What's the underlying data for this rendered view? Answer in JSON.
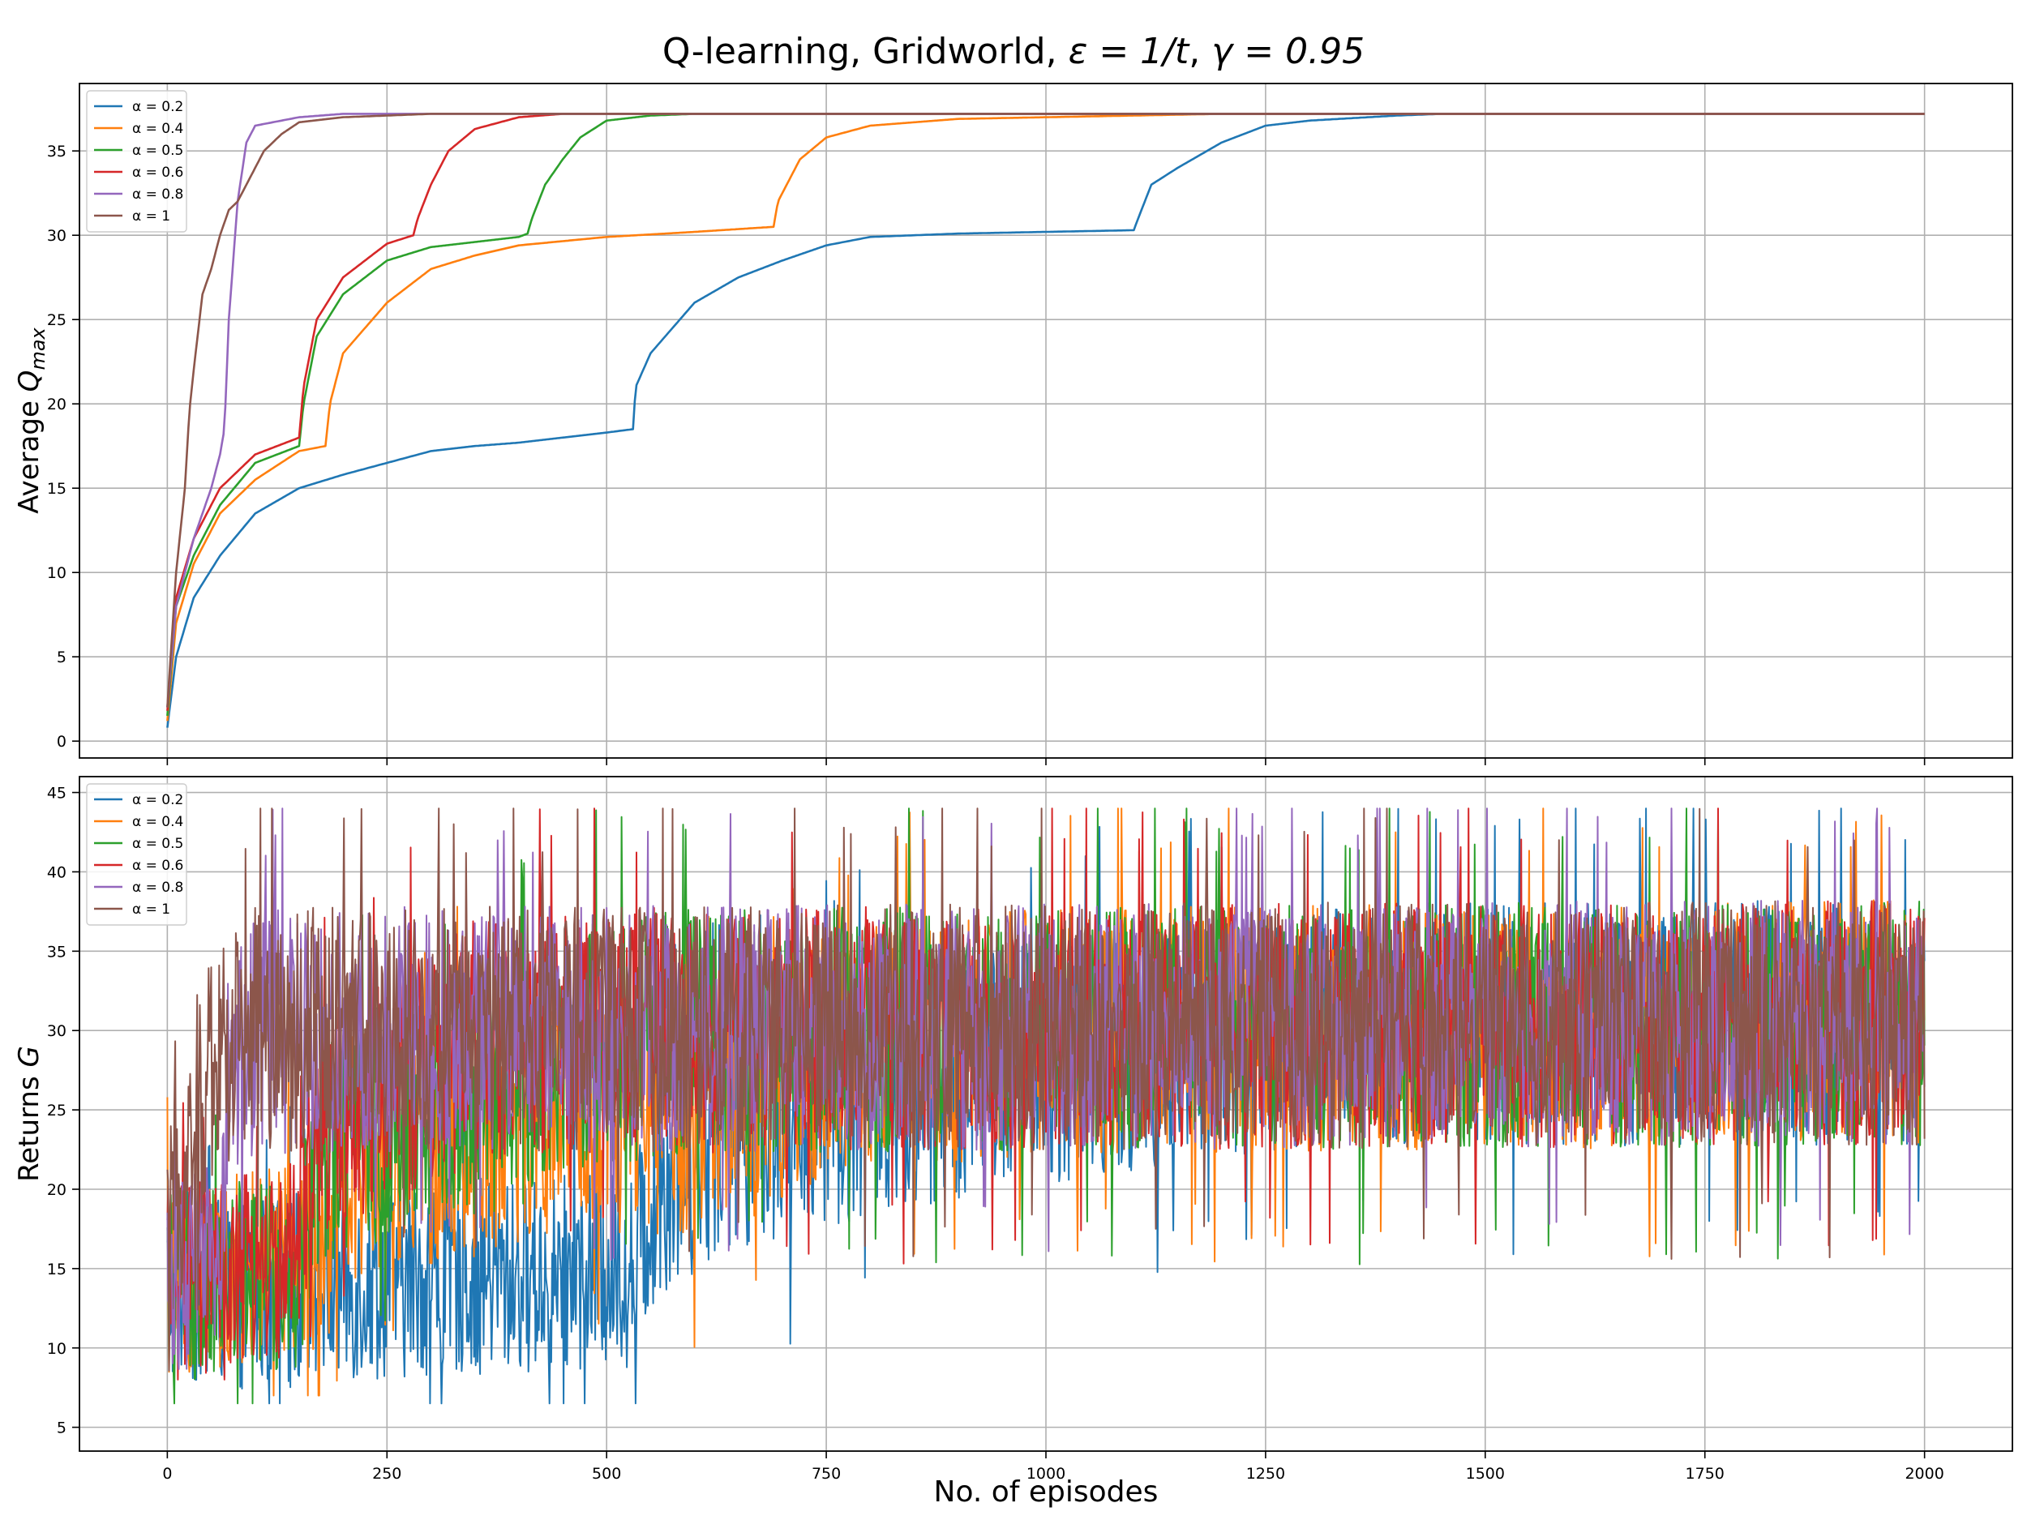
{
  "figure": {
    "title_main": "Q-learning, Gridworld, ",
    "title_eps": "ε = 1/t",
    "title_sep": ", ",
    "title_gamma": "γ = 0.95",
    "xlabel": "No. of episodes"
  },
  "chart_data": [
    {
      "type": "line",
      "panel": "top",
      "ylabel_main": "Average Q",
      "ylabel_sub": "max",
      "xlim": [
        -100,
        2100
      ],
      "ylim": [
        -1,
        39
      ],
      "grid": true,
      "legend_position": "upper-left",
      "xticks": [
        0,
        250,
        500,
        750,
        1000,
        1250,
        1500,
        1750,
        2000
      ],
      "xticks_labeled": false,
      "yticks": [
        0,
        5,
        10,
        15,
        20,
        25,
        30,
        35
      ],
      "series": [
        {
          "name": "α = 0.2",
          "color": "#1f77b4",
          "points": [
            [
              0,
              0.8
            ],
            [
              10,
              5
            ],
            [
              30,
              8.5
            ],
            [
              60,
              11
            ],
            [
              100,
              13.5
            ],
            [
              150,
              15
            ],
            [
              200,
              15.8
            ],
            [
              250,
              16.5
            ],
            [
              300,
              17.2
            ],
            [
              350,
              17.5
            ],
            [
              400,
              17.7
            ],
            [
              450,
              18
            ],
            [
              500,
              18.3
            ],
            [
              530,
              18.5
            ],
            [
              533,
              21
            ],
            [
              550,
              23
            ],
            [
              600,
              26
            ],
            [
              650,
              27.5
            ],
            [
              700,
              28.5
            ],
            [
              750,
              29.4
            ],
            [
              800,
              29.9
            ],
            [
              900,
              30.1
            ],
            [
              1000,
              30.2
            ],
            [
              1100,
              30.3
            ],
            [
              1105,
              31
            ],
            [
              1120,
              33
            ],
            [
              1150,
              34
            ],
            [
              1200,
              35.5
            ],
            [
              1250,
              36.5
            ],
            [
              1300,
              36.8
            ],
            [
              1400,
              37.1
            ],
            [
              1450,
              37.2
            ],
            [
              2000,
              37.2
            ]
          ]
        },
        {
          "name": "α = 0.4",
          "color": "#ff7f0e",
          "points": [
            [
              0,
              1.2
            ],
            [
              10,
              7
            ],
            [
              30,
              10.5
            ],
            [
              60,
              13.5
            ],
            [
              100,
              15.5
            ],
            [
              150,
              17.2
            ],
            [
              180,
              17.5
            ],
            [
              185,
              20
            ],
            [
              200,
              23
            ],
            [
              250,
              26
            ],
            [
              300,
              28
            ],
            [
              350,
              28.8
            ],
            [
              400,
              29.4
            ],
            [
              500,
              29.9
            ],
            [
              600,
              30.2
            ],
            [
              690,
              30.5
            ],
            [
              695,
              32
            ],
            [
              720,
              34.5
            ],
            [
              750,
              35.8
            ],
            [
              800,
              36.5
            ],
            [
              900,
              36.9
            ],
            [
              1000,
              37
            ],
            [
              1100,
              37.1
            ],
            [
              1200,
              37.2
            ],
            [
              2000,
              37.2
            ]
          ]
        },
        {
          "name": "α = 0.5",
          "color": "#2ca02c",
          "points": [
            [
              0,
              1.5
            ],
            [
              10,
              8
            ],
            [
              30,
              11
            ],
            [
              60,
              14
            ],
            [
              100,
              16.5
            ],
            [
              150,
              17.5
            ],
            [
              155,
              20
            ],
            [
              170,
              24
            ],
            [
              200,
              26.5
            ],
            [
              250,
              28.5
            ],
            [
              300,
              29.3
            ],
            [
              350,
              29.6
            ],
            [
              400,
              29.9
            ],
            [
              410,
              30.1
            ],
            [
              415,
              31
            ],
            [
              430,
              33
            ],
            [
              450,
              34.5
            ],
            [
              470,
              35.8
            ],
            [
              500,
              36.8
            ],
            [
              550,
              37.1
            ],
            [
              600,
              37.2
            ],
            [
              2000,
              37.2
            ]
          ]
        },
        {
          "name": "α = 0.6",
          "color": "#d62728",
          "points": [
            [
              0,
              1.8
            ],
            [
              10,
              8.5
            ],
            [
              30,
              12
            ],
            [
              60,
              15
            ],
            [
              100,
              17
            ],
            [
              150,
              18
            ],
            [
              155,
              21
            ],
            [
              170,
              25
            ],
            [
              200,
              27.5
            ],
            [
              250,
              29.5
            ],
            [
              280,
              30
            ],
            [
              285,
              31
            ],
            [
              300,
              33
            ],
            [
              320,
              35
            ],
            [
              350,
              36.3
            ],
            [
              400,
              37
            ],
            [
              450,
              37.2
            ],
            [
              2000,
              37.2
            ]
          ]
        },
        {
          "name": "α = 0.8",
          "color": "#9467bd",
          "points": [
            [
              0,
              2
            ],
            [
              10,
              8
            ],
            [
              30,
              12
            ],
            [
              50,
              15
            ],
            [
              60,
              17
            ],
            [
              65,
              18.5
            ],
            [
              70,
              25
            ],
            [
              80,
              32
            ],
            [
              90,
              35.5
            ],
            [
              100,
              36.5
            ],
            [
              150,
              37
            ],
            [
              200,
              37.2
            ],
            [
              2000,
              37.2
            ]
          ]
        },
        {
          "name": "α = 1",
          "color": "#8c564b",
          "points": [
            [
              0,
              2
            ],
            [
              10,
              10
            ],
            [
              20,
              15
            ],
            [
              25,
              19.5
            ],
            [
              30,
              22
            ],
            [
              40,
              26.5
            ],
            [
              50,
              28
            ],
            [
              60,
              30
            ],
            [
              70,
              31.5
            ],
            [
              80,
              32
            ],
            [
              90,
              33
            ],
            [
              100,
              34
            ],
            [
              110,
              35
            ],
            [
              130,
              36
            ],
            [
              150,
              36.7
            ],
            [
              200,
              37
            ],
            [
              250,
              37.1
            ],
            [
              300,
              37.2
            ],
            [
              2000,
              37.2
            ]
          ]
        }
      ]
    },
    {
      "type": "line",
      "panel": "bottom",
      "ylabel_main": "Returns G",
      "xlim": [
        -100,
        2100
      ],
      "ylim": [
        3.5,
        46
      ],
      "grid": true,
      "legend_position": "upper-left",
      "xticks": [
        0,
        250,
        500,
        750,
        1000,
        1250,
        1500,
        1750,
        2000
      ],
      "yticks": [
        5,
        10,
        15,
        20,
        25,
        30,
        35,
        40,
        45
      ],
      "note": "noisy per-episode returns; each series described by its running mean and spread",
      "series": [
        {
          "name": "α = 0.2",
          "color": "#1f77b4",
          "mean": [
            [
              0,
              14
            ],
            [
              100,
              13.5
            ],
            [
              200,
              14
            ],
            [
              300,
              14.5
            ],
            [
              400,
              14.5
            ],
            [
              530,
              15
            ],
            [
              560,
              21
            ],
            [
              650,
              24
            ],
            [
              800,
              26
            ],
            [
              1000,
              28
            ],
            [
              1200,
              29.5
            ],
            [
              1400,
              30.5
            ],
            [
              2000,
              30.5
            ]
          ],
          "spread": [
            [
              0,
              4
            ],
            [
              530,
              4
            ],
            [
              560,
              5
            ],
            [
              2000,
              5
            ]
          ],
          "min": 6.5,
          "max": 44
        },
        {
          "name": "α = 0.4",
          "color": "#ff7f0e",
          "mean": [
            [
              0,
              14
            ],
            [
              100,
              15
            ],
            [
              180,
              16
            ],
            [
              200,
              22
            ],
            [
              400,
              24
            ],
            [
              690,
              25.5
            ],
            [
              750,
              28.5
            ],
            [
              1000,
              30
            ],
            [
              2000,
              30.5
            ]
          ],
          "spread": [
            [
              0,
              4
            ],
            [
              180,
              4
            ],
            [
              200,
              5
            ],
            [
              2000,
              5
            ]
          ],
          "min": 7,
          "max": 44
        },
        {
          "name": "α = 0.5",
          "color": "#2ca02c",
          "mean": [
            [
              0,
              14
            ],
            [
              150,
              15
            ],
            [
              170,
              23
            ],
            [
              400,
              26
            ],
            [
              450,
              29
            ],
            [
              600,
              30
            ],
            [
              2000,
              30.5
            ]
          ],
          "spread": [
            [
              0,
              4
            ],
            [
              150,
              4
            ],
            [
              170,
              5
            ],
            [
              2000,
              5
            ]
          ],
          "min": 6.5,
          "max": 44
        },
        {
          "name": "α = 0.6",
          "color": "#d62728",
          "mean": [
            [
              0,
              14
            ],
            [
              150,
              15.5
            ],
            [
              170,
              24
            ],
            [
              280,
              27
            ],
            [
              350,
              29.5
            ],
            [
              500,
              30
            ],
            [
              2000,
              30.5
            ]
          ],
          "spread": [
            [
              0,
              4
            ],
            [
              150,
              4
            ],
            [
              170,
              5
            ],
            [
              2000,
              5
            ]
          ],
          "min": 8,
          "max": 44
        },
        {
          "name": "α = 0.8",
          "color": "#9467bd",
          "mean": [
            [
              0,
              14
            ],
            [
              60,
              16
            ],
            [
              70,
              27
            ],
            [
              100,
              30
            ],
            [
              2000,
              30.5
            ]
          ],
          "spread": [
            [
              0,
              4
            ],
            [
              60,
              4
            ],
            [
              70,
              5
            ],
            [
              2000,
              5
            ]
          ],
          "min": 5,
          "max": 44
        },
        {
          "name": "α = 1",
          "color": "#8c564b",
          "mean": [
            [
              0,
              15
            ],
            [
              20,
              22
            ],
            [
              50,
              28
            ],
            [
              100,
              30
            ],
            [
              2000,
              30.5
            ]
          ],
          "spread": [
            [
              0,
              5
            ],
            [
              2000,
              5
            ]
          ],
          "min": 7,
          "max": 44
        }
      ]
    }
  ]
}
